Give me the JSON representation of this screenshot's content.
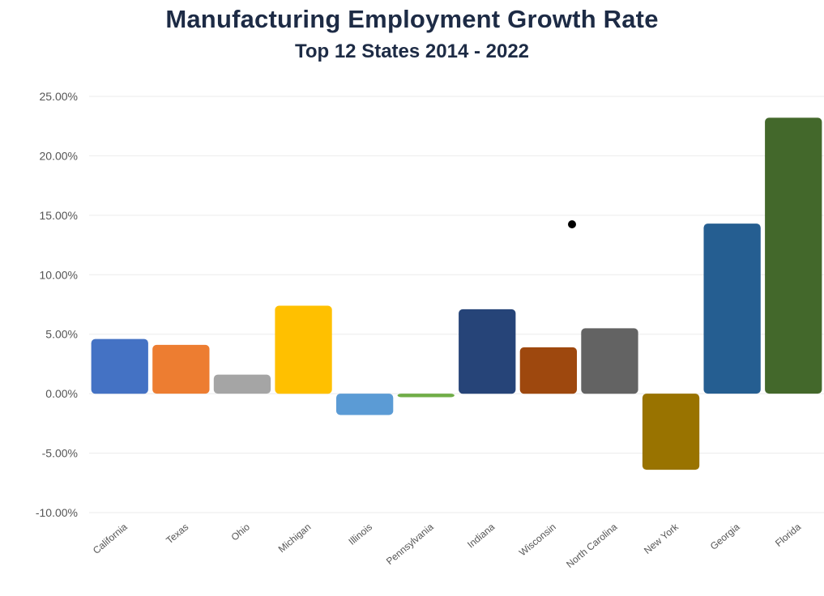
{
  "chart_data": {
    "type": "bar",
    "title": "Manufacturing Employment Growth Rate",
    "subtitle": "Top 12 States  2014 - 2022",
    "categories": [
      "California",
      "Texas",
      "Ohio",
      "Michigan",
      "Illinois",
      "Pennsylvania",
      "Indiana",
      "Wisconsin",
      "North Carolina",
      "New York",
      "Georgia",
      "Florida"
    ],
    "values": [
      4.6,
      4.1,
      1.6,
      7.4,
      -1.8,
      -0.3,
      7.1,
      3.9,
      5.5,
      -6.4,
      14.3,
      23.2
    ],
    "colors": [
      "#4472c4",
      "#ed7d31",
      "#a5a5a5",
      "#ffc000",
      "#5b9bd5",
      "#70ad47",
      "#264478",
      "#9e480e",
      "#636363",
      "#997300",
      "#255e91",
      "#43682b"
    ],
    "yticks": [
      "25.00%",
      "20.00%",
      "15.00%",
      "10.00%",
      "5.00%",
      "0.00%",
      "-5.00%",
      "-10.00%"
    ],
    "ylim": [
      -10,
      25
    ],
    "xlabel": "",
    "ylabel": "",
    "legend": "none",
    "grid": true
  }
}
